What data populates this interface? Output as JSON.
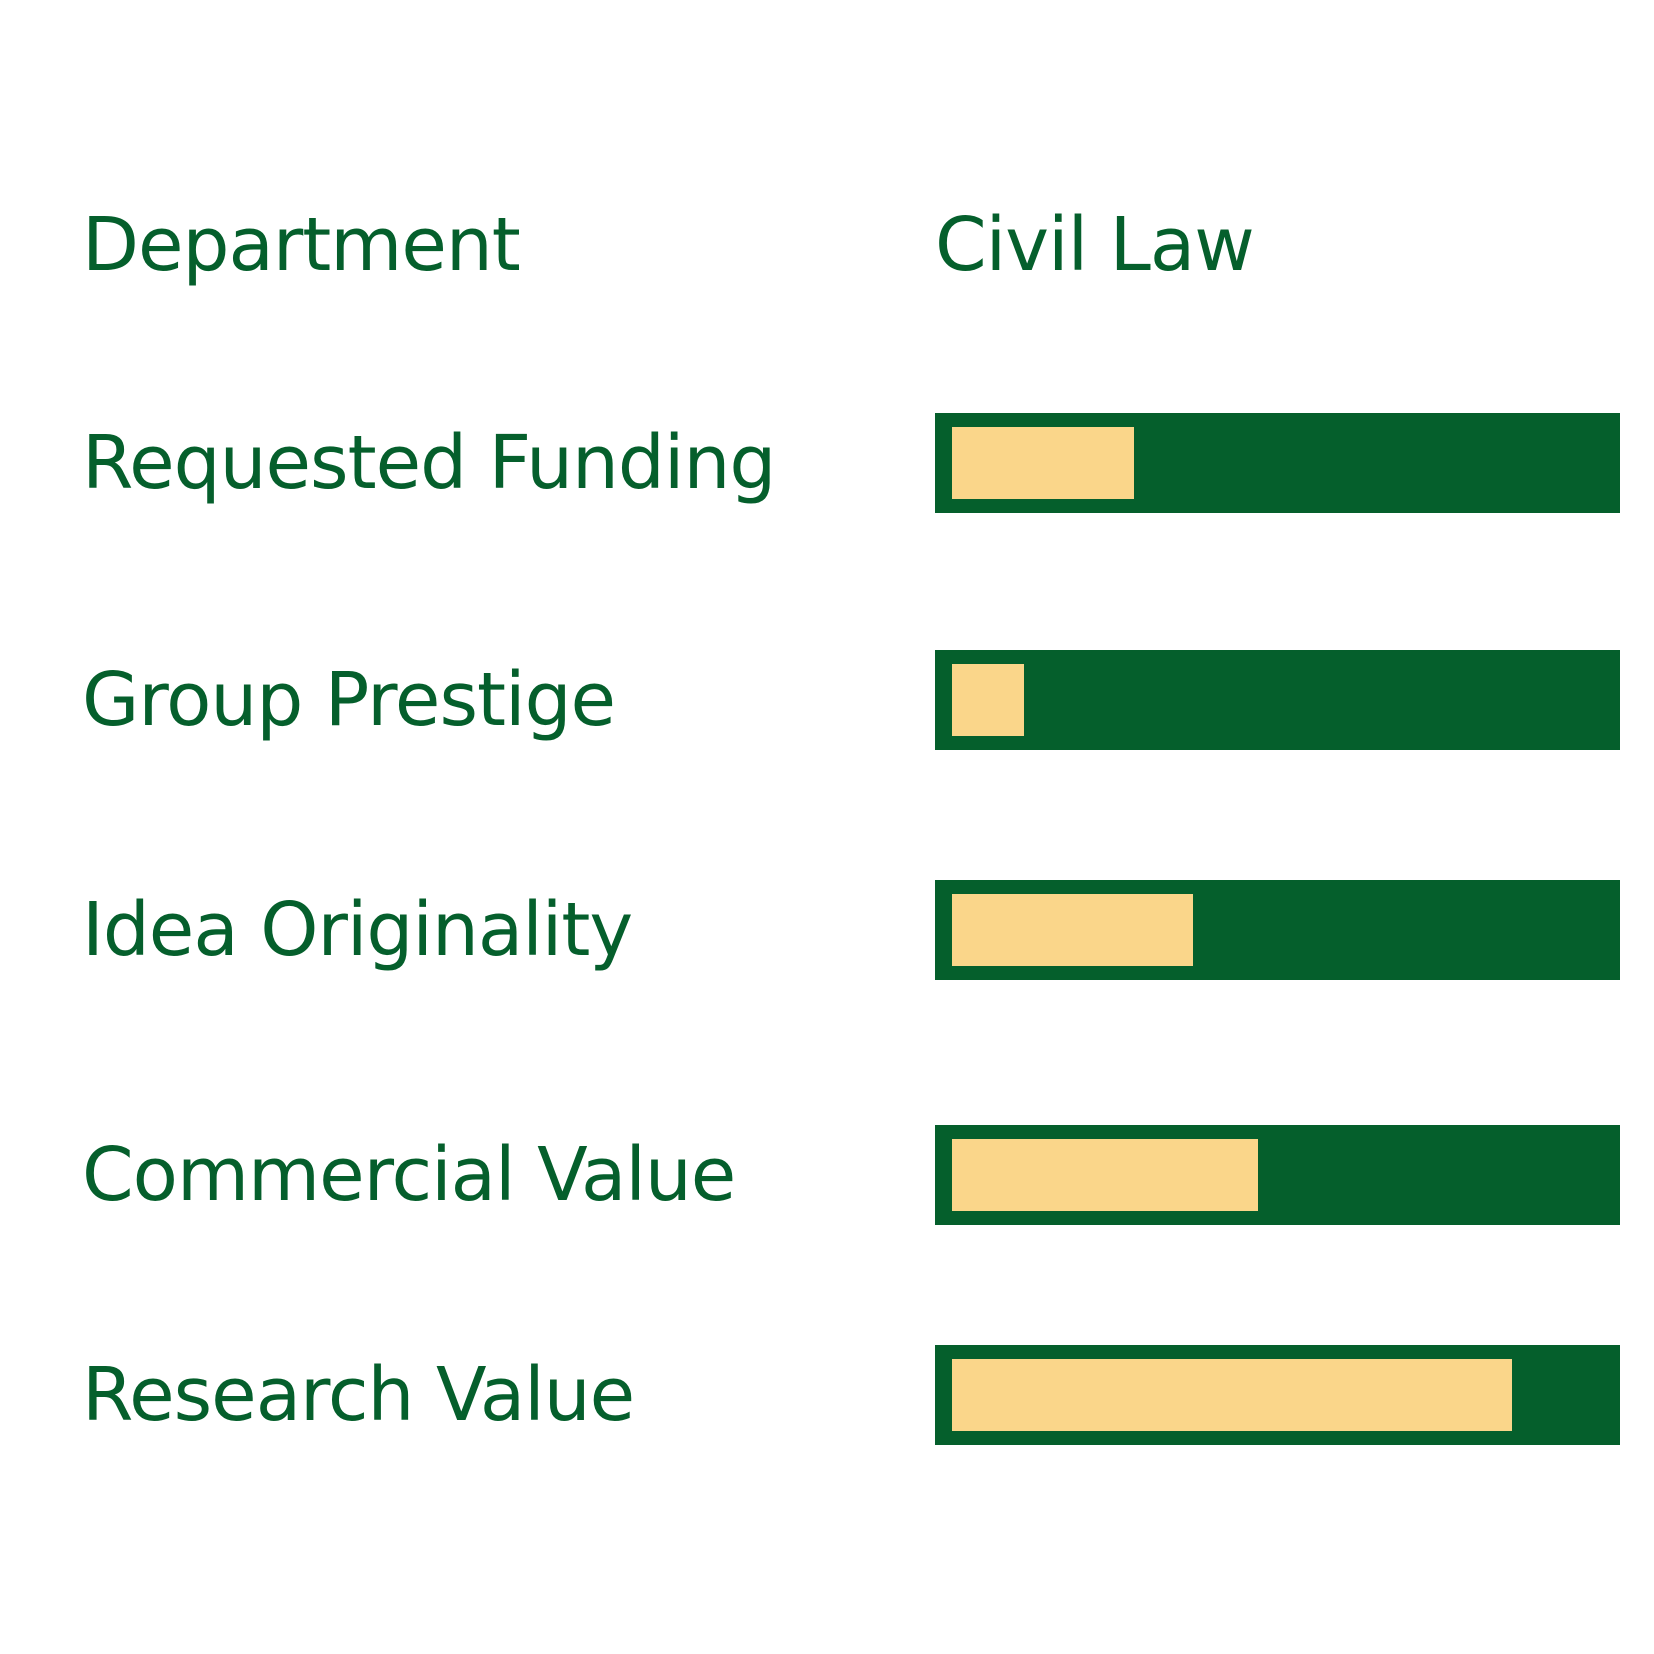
{
  "colors": {
    "primary": "#055f2c",
    "fill": "#fad68a",
    "background": "#ffffff"
  },
  "header": {
    "label": "Department",
    "value": "Civil Law"
  },
  "chart_data": {
    "type": "bar",
    "orientation": "horizontal",
    "categories": [
      "Requested Funding",
      "Group Prestige",
      "Idea Originality",
      "Commercial Value",
      "Research Value"
    ],
    "values": [
      0.28,
      0.11,
      0.37,
      0.47,
      0.86
    ],
    "ylim": [
      0,
      1
    ],
    "grid": false
  }
}
